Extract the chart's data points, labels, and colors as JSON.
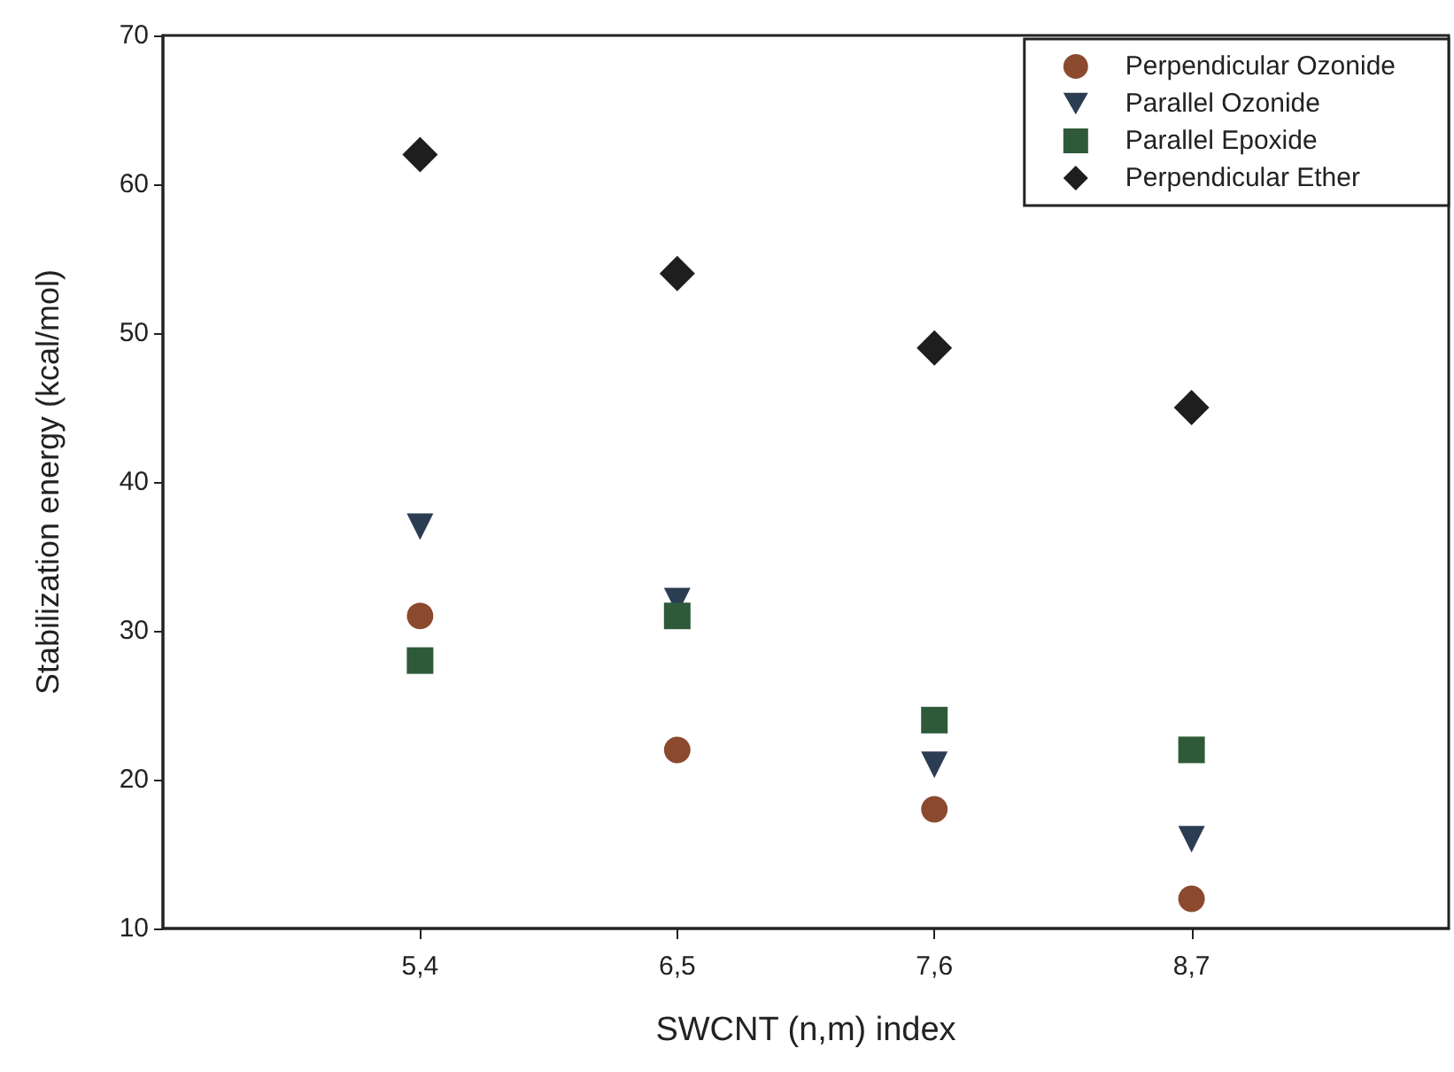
{
  "chart_data": {
    "type": "scatter",
    "xlabel": "SWCNT (n,m) index",
    "ylabel": "Stabilization energy (kcal/mol)",
    "categories": [
      "5,4",
      "6,5",
      "7,6",
      "8,7"
    ],
    "series": [
      {
        "name": "Perpendicular Ozonide",
        "color": "#8b4a2e",
        "marker": "circle",
        "values": [
          31,
          22,
          18,
          12
        ]
      },
      {
        "name": "Parallel Ozonide",
        "color": "#2b3d52",
        "marker": "triangle-down",
        "values": [
          37,
          32,
          21,
          16
        ]
      },
      {
        "name": "Parallel Epoxide",
        "color": "#2e5a3a",
        "marker": "square",
        "values": [
          28,
          31,
          24,
          22
        ]
      },
      {
        "name": "Perpendicular Ether",
        "color": "#1e1e1e",
        "marker": "diamond",
        "values": [
          62,
          54,
          49,
          45
        ]
      }
    ],
    "ylim": [
      10,
      70
    ],
    "yticks": [
      10,
      20,
      30,
      40,
      50,
      60,
      70
    ],
    "grid": false,
    "legend": "top right"
  }
}
